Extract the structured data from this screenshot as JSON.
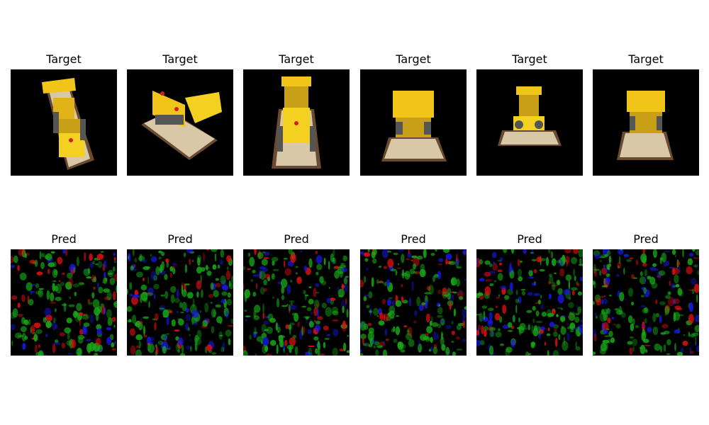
{
  "figure": {
    "target_label": "Target",
    "pred_label": "Pred",
    "panels_per_row": 6,
    "colors": {
      "background": "#000000",
      "lego_yellow": "#f0c419",
      "lego_tan": "#d8c8a8",
      "lego_brown": "#7a4a2a",
      "noise_red": "#e01010",
      "noise_green": "#18a818",
      "noise_blue": "#1818e0"
    }
  }
}
